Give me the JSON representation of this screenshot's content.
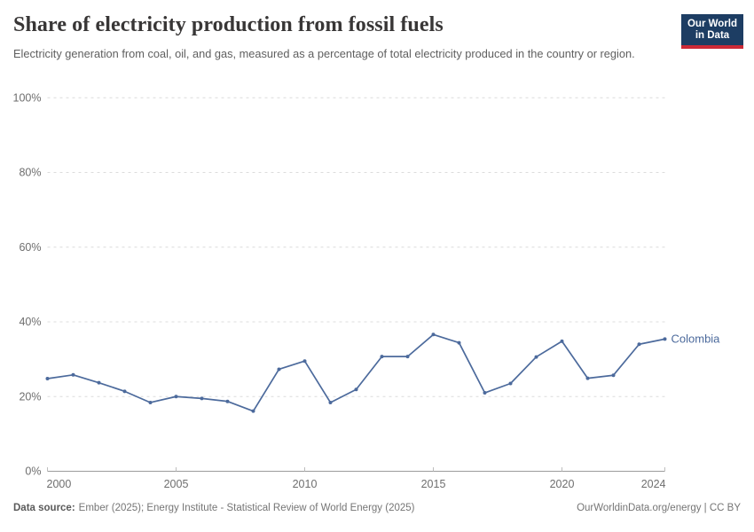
{
  "header": {
    "title": "Share of electricity production from fossil fuels",
    "subtitle": "Electricity generation from coal, oil, and gas, measured as a percentage of total electricity produced in the country or region.",
    "logo": {
      "line1": "Our World",
      "line2": "in Data",
      "bg_color": "#1d3d63",
      "stripe_color": "#cc2936"
    }
  },
  "chart_data": {
    "type": "line",
    "title": "Share of electricity production from fossil fuels",
    "xlabel": "",
    "ylabel": "",
    "x": [
      2000,
      2001,
      2002,
      2003,
      2004,
      2005,
      2006,
      2007,
      2008,
      2009,
      2010,
      2011,
      2012,
      2013,
      2014,
      2015,
      2016,
      2017,
      2018,
      2019,
      2020,
      2021,
      2022,
      2023,
      2024
    ],
    "series": [
      {
        "name": "Colombia",
        "color": "#4C6A9C",
        "values": [
          24.8,
          25.8,
          23.7,
          21.4,
          18.4,
          20.0,
          19.5,
          18.7,
          16.1,
          27.3,
          29.5,
          18.4,
          21.9,
          30.7,
          30.7,
          36.6,
          34.4,
          21.0,
          23.5,
          30.6,
          34.8,
          24.9,
          25.7,
          34.0,
          35.4
        ]
      }
    ],
    "xlim": [
      2000,
      2024
    ],
    "ylim": [
      0,
      100
    ],
    "x_ticks": [
      2000,
      2005,
      2010,
      2015,
      2020,
      2024
    ],
    "y_ticks": [
      0,
      20,
      40,
      60,
      80,
      100
    ],
    "y_tick_suffix": "%",
    "grid": "horizontal-dashed",
    "legend_position": "end-of-line-label",
    "colors": {
      "gridline": "#dcdcdc",
      "axis": "#9c9c9c",
      "tick_label": "#6e6e6e"
    }
  },
  "footer": {
    "source_label": "Data source:",
    "source_text": "Ember (2025); Energy Institute - Statistical Review of World Energy (2025)",
    "license_text": "OurWorldinData.org/energy | CC BY"
  }
}
